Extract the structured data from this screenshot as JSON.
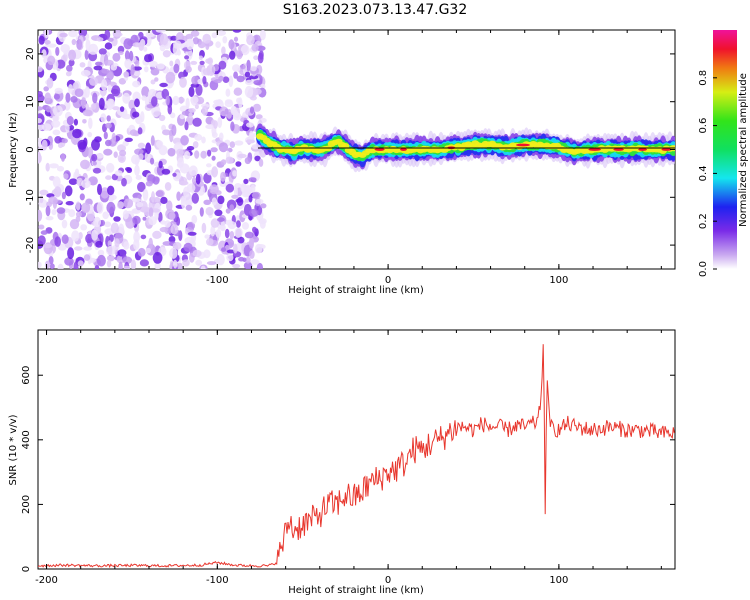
{
  "title": "S163.2023.073.13.47.G32",
  "chart_data": [
    {
      "type": "heatmap",
      "xlabel": "Height of straight line (km)",
      "ylabel": "Frequency (Hz)",
      "xlim": [
        -205,
        168
      ],
      "ylim": [
        -25,
        25
      ],
      "xticks": [
        -200,
        -100,
        0,
        100
      ],
      "yticks": [
        20,
        10,
        0,
        -10,
        -20
      ],
      "noise_region_x": [
        -205,
        -73
      ],
      "signal_track": {
        "x": [
          -75,
          -70,
          -65,
          -60,
          -55,
          -50,
          -45,
          -40,
          -35,
          -30,
          -25,
          -20,
          -15,
          -10,
          -5,
          0,
          10,
          20,
          30,
          40,
          50,
          60,
          70,
          80,
          90,
          100,
          110,
          120,
          130,
          140,
          150,
          160,
          168
        ],
        "y": [
          3,
          1.5,
          0.5,
          0,
          -0.5,
          0.5,
          0,
          0,
          0.5,
          2,
          0.5,
          -1,
          -1.5,
          0,
          0,
          0,
          0,
          0,
          0,
          0.5,
          1,
          1,
          0.5,
          1,
          1,
          0.5,
          -0.5,
          0,
          0,
          0,
          0,
          0,
          0
        ]
      },
      "colorbar": {
        "label": "Normalized spectral amplitude",
        "range": [
          0,
          1
        ],
        "ticks": [
          0.0,
          0.2,
          0.4,
          0.6,
          0.8
        ]
      }
    },
    {
      "type": "line",
      "xlabel": "Height of straight line (km)",
      "ylabel": "SNR (10 * v/v)",
      "xlim": [
        -205,
        168
      ],
      "ylim": [
        0,
        740
      ],
      "xticks": [
        -200,
        -100,
        0,
        100
      ],
      "yticks": [
        0,
        200,
        400,
        600
      ],
      "color": "#e8372e",
      "series": [
        {
          "x": [
            -205,
            -190,
            -170,
            -150,
            -130,
            -110,
            -100,
            -90,
            -80,
            -70,
            -65,
            -60,
            -58,
            -55,
            -50,
            -45,
            -40,
            -35,
            -30,
            -25,
            -20,
            -15,
            -10,
            -5,
            0,
            5,
            10,
            15,
            20,
            25,
            30,
            35,
            40,
            45,
            50,
            55,
            60,
            65,
            70,
            75,
            80,
            85,
            88,
            90,
            91,
            92,
            93,
            95,
            100,
            105,
            110,
            120,
            130,
            140,
            150,
            160,
            168
          ],
          "y": [
            10,
            12,
            10,
            11,
            10,
            12,
            20,
            12,
            10,
            10,
            20,
            110,
            150,
            120,
            140,
            150,
            170,
            200,
            200,
            230,
            220,
            240,
            270,
            280,
            300,
            310,
            330,
            370,
            370,
            390,
            400,
            420,
            440,
            440,
            430,
            450,
            440,
            440,
            430,
            445,
            440,
            450,
            460,
            560,
            730,
            170,
            600,
            440,
            430,
            450,
            440,
            430,
            440,
            430,
            430,
            420,
            420
          ]
        }
      ]
    }
  ]
}
